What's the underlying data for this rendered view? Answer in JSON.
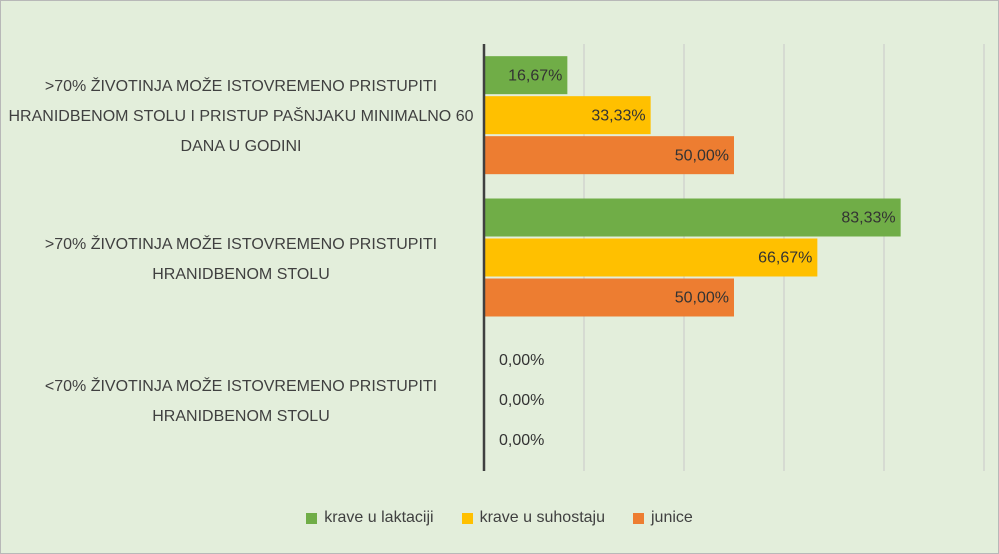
{
  "chart_data": {
    "type": "bar",
    "orientation": "horizontal",
    "categories": [
      ">70% ŽIVOTINJA MOŽE ISTOVREMENO PRISTUPITI HRANIDBENOM STOLU I PRISTUP PAŠNJAKU MINIMALNO 60 DANA U GODINI",
      ">70% ŽIVOTINJA MOŽE ISTOVREMENO PRISTUPITI HRANIDBENOM STOLU",
      "<70% ŽIVOTINJA MOŽE ISTOVREMENO PRISTUPITI HRANIDBENOM STOLU"
    ],
    "series": [
      {
        "name": "krave u laktaciji",
        "color": "#70ad47",
        "values": [
          16.67,
          83.33,
          0
        ],
        "value_labels": [
          "16,67%",
          "83,33%",
          "0,00%"
        ]
      },
      {
        "name": "krave u suhostaju",
        "color": "#ffc000",
        "values": [
          33.33,
          66.67,
          0
        ],
        "value_labels": [
          "33,33%",
          "66,67%",
          "0,00%"
        ]
      },
      {
        "name": "junice",
        "color": "#ed7d31",
        "values": [
          50,
          50,
          0
        ],
        "value_labels": [
          "50,00%",
          "50,00%",
          "0,00%"
        ]
      }
    ],
    "xlim": [
      0,
      100
    ],
    "xticks": [
      0,
      20,
      40,
      60,
      80,
      100
    ],
    "grid": true,
    "legend": "bottom"
  }
}
